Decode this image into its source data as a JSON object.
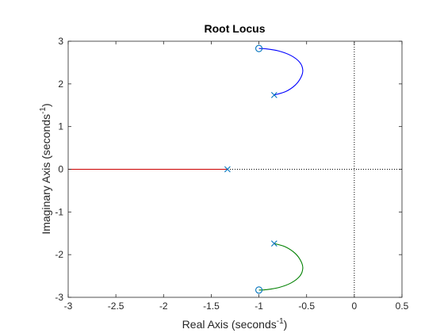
{
  "chart_data": {
    "type": "line",
    "title": "Root Locus",
    "xlabel": "Real Axis (seconds",
    "ylabel": "Imaginary Axis (seconds",
    "unit_superscript": "-1",
    "label_close": ")",
    "xlim": [
      -3,
      0.5
    ],
    "ylim": [
      -3,
      3
    ],
    "xticks": [
      -3,
      -2.5,
      -2,
      -1.5,
      -1,
      -0.5,
      0,
      0.5
    ],
    "yticks": [
      -3,
      -2,
      -1,
      0,
      1,
      2,
      3
    ],
    "xtick_labels": [
      "-3",
      "-2.5",
      "-2",
      "-1.5",
      "-1",
      "-0.5",
      "0",
      "0.5"
    ],
    "ytick_labels": [
      "-3",
      "-2",
      "-1",
      "0",
      "1",
      "2",
      "3"
    ],
    "grid": false,
    "colors": {
      "upper_branch": "#0000ff",
      "lower_branch": "#008000",
      "real_branch": "#cc0000",
      "poles_zeros": "#0072bd",
      "reference_lines": "#000000"
    },
    "poles": [
      {
        "re": -0.84,
        "im": 1.74
      },
      {
        "re": -0.84,
        "im": -1.74
      },
      {
        "re": -1.33,
        "im": 0
      }
    ],
    "zeros": [
      {
        "re": -1.0,
        "im": 2.83
      },
      {
        "re": -1.0,
        "im": -2.83
      }
    ],
    "series": [
      {
        "values": [
          [
            -0.84,
            1.74
          ],
          [
            -0.72,
            1.82
          ],
          [
            -0.62,
            1.97
          ],
          [
            -0.56,
            2.15
          ],
          [
            -0.54,
            2.32
          ],
          [
            -0.57,
            2.5
          ],
          [
            -0.66,
            2.66
          ],
          [
            -0.79,
            2.77
          ],
          [
            -0.92,
            2.82
          ],
          [
            -1.0,
            2.83
          ]
        ]
      },
      {
        "values": [
          [
            -0.84,
            -1.74
          ],
          [
            -0.72,
            -1.82
          ],
          [
            -0.62,
            -1.97
          ],
          [
            -0.56,
            -2.15
          ],
          [
            -0.54,
            -2.32
          ],
          [
            -0.57,
            -2.5
          ],
          [
            -0.66,
            -2.66
          ],
          [
            -0.79,
            -2.77
          ],
          [
            -0.92,
            -2.82
          ],
          [
            -1.0,
            -2.83
          ]
        ]
      },
      {
        "values": [
          [
            -1.33,
            0
          ],
          [
            -3,
            0
          ]
        ]
      }
    ]
  }
}
